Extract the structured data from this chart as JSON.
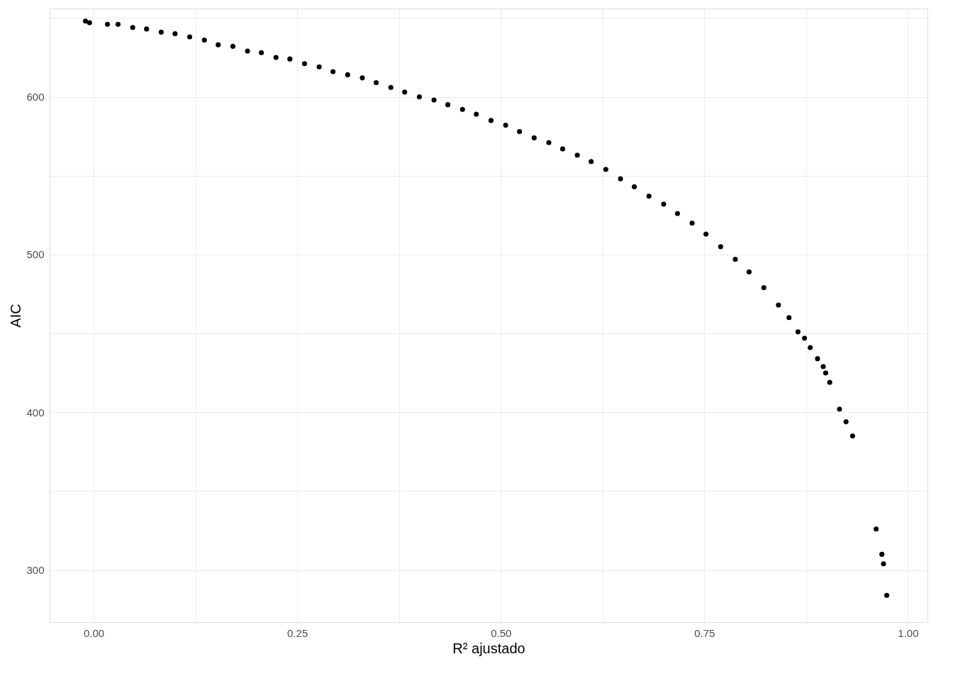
{
  "chart_data": {
    "type": "scatter",
    "xlabel": "R² ajustado",
    "ylabel": "AIC",
    "marker": "circle",
    "grid": true,
    "series": [
      {
        "color": "#000000",
        "x": [
          -0.01,
          -0.005,
          0.017,
          0.03,
          0.048,
          0.065,
          0.083,
          0.1,
          0.118,
          0.136,
          0.153,
          0.171,
          0.189,
          0.206,
          0.224,
          0.241,
          0.259,
          0.277,
          0.294,
          0.312,
          0.33,
          0.347,
          0.365,
          0.382,
          0.4,
          0.418,
          0.435,
          0.453,
          0.47,
          0.488,
          0.506,
          0.523,
          0.541,
          0.559,
          0.576,
          0.594,
          0.611,
          0.629,
          0.647,
          0.664,
          0.682,
          0.7,
          0.717,
          0.735,
          0.752,
          0.77,
          0.788,
          0.805,
          0.823,
          0.841,
          0.854,
          0.865,
          0.873,
          0.88,
          0.889,
          0.896,
          0.899,
          0.904,
          0.916,
          0.924,
          0.932,
          0.961,
          0.968,
          0.97,
          0.974
        ],
        "values": [
          648,
          647,
          646,
          646,
          644,
          643,
          641,
          640,
          638,
          636,
          633,
          632,
          629,
          628,
          625,
          624,
          621,
          619,
          616,
          614,
          612,
          609,
          606,
          603,
          600,
          598,
          595,
          592,
          589,
          585,
          582,
          578,
          574,
          571,
          567,
          563,
          559,
          554,
          548,
          543,
          537,
          532,
          526,
          520,
          513,
          505,
          497,
          489,
          479,
          468,
          460,
          451,
          447,
          441,
          434,
          429,
          425,
          419,
          402,
          394,
          385,
          326,
          310,
          304,
          284
        ]
      }
    ],
    "xlim": [
      -0.054,
      1.024
    ],
    "ylim": [
      267,
      656
    ],
    "xticks": [
      {
        "value": 0,
        "label": "0.00"
      },
      {
        "value": 0.125,
        "label": null
      },
      {
        "value": 0.25,
        "label": "0.25"
      },
      {
        "value": 0.375,
        "label": null
      },
      {
        "value": 0.5,
        "label": "0.50"
      },
      {
        "value": 0.625,
        "label": null
      },
      {
        "value": 0.75,
        "label": "0.75"
      },
      {
        "value": 0.875,
        "label": null
      },
      {
        "value": 1,
        "label": "1.00"
      }
    ],
    "yticks": [
      300,
      {
        "value": 350,
        "label": null
      },
      400,
      {
        "value": 450,
        "label": null
      },
      500,
      {
        "value": 550,
        "label": null
      },
      600,
      {
        "value": 650,
        "label": null
      }
    ]
  }
}
